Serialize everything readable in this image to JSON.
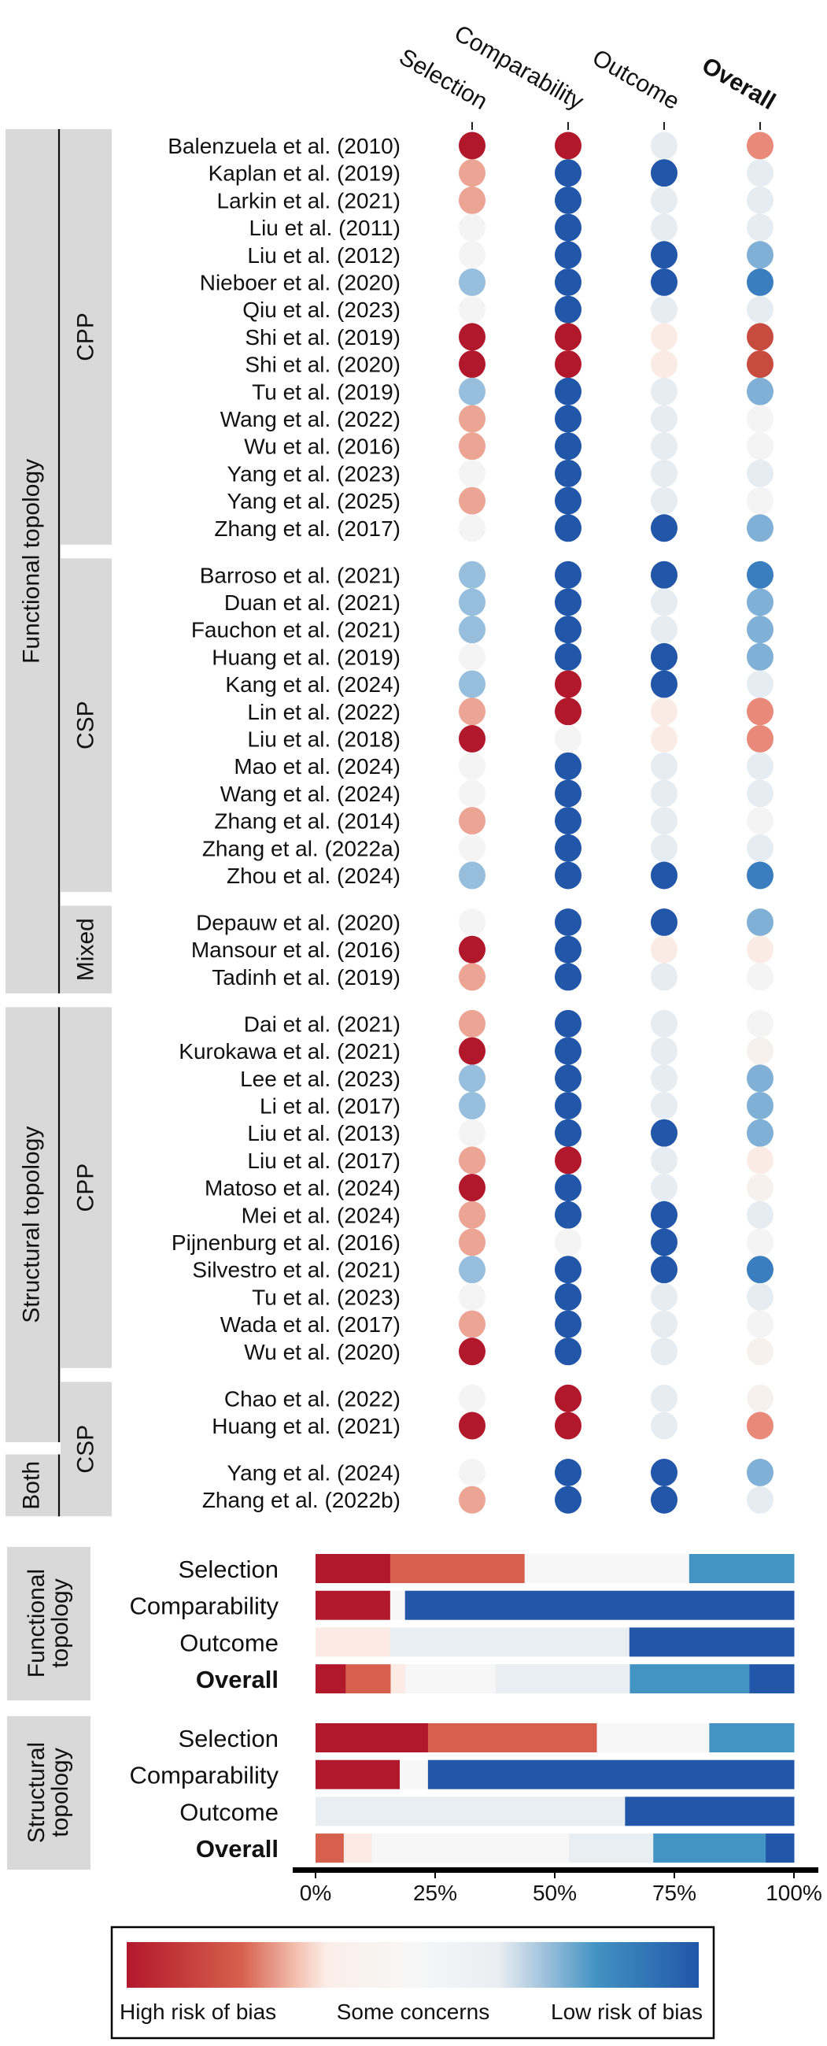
{
  "chart_data": [
    {
      "type": "table",
      "title": "Risk of bias traffic-light plot",
      "domains": [
        "Selection",
        "Comparability",
        "Outcome",
        "Overall"
      ],
      "bold_domain": "Overall",
      "dot_colors": {
        "H": "#b2182b",
        "h2": "#c84b40",
        "M": "#eca494",
        "m2": "#e8897a",
        "P": "#faebe4",
        "F": "#f7f1ee",
        "N": "#f4f4f4",
        "G": "#e6edf2",
        "L": "#98bedd",
        "l2": "#80b0d5",
        "B": "#3a7ebf",
        "D": "#2156a8"
      },
      "segments": [
        {
          "outer": "Functional topology",
          "inner": "CPP",
          "studies": [
            {
              "name": "Balenzuela et al. (2010)",
              "ratings": [
                "H",
                "H",
                "G",
                "m2"
              ]
            },
            {
              "name": "Kaplan et al. (2019)",
              "ratings": [
                "M",
                "D",
                "D",
                "G"
              ]
            },
            {
              "name": "Larkin et al. (2021)",
              "ratings": [
                "M",
                "D",
                "G",
                "G"
              ]
            },
            {
              "name": "Liu et al. (2011)",
              "ratings": [
                "N",
                "D",
                "G",
                "G"
              ]
            },
            {
              "name": "Liu et al. (2012)",
              "ratings": [
                "N",
                "D",
                "D",
                "l2"
              ]
            },
            {
              "name": "Nieboer et al. (2020)",
              "ratings": [
                "L",
                "D",
                "D",
                "B"
              ]
            },
            {
              "name": "Qiu et al. (2023)",
              "ratings": [
                "N",
                "D",
                "G",
                "G"
              ]
            },
            {
              "name": "Shi et al. (2019)",
              "ratings": [
                "H",
                "H",
                "P",
                "h2"
              ]
            },
            {
              "name": "Shi et al. (2020)",
              "ratings": [
                "H",
                "H",
                "P",
                "h2"
              ]
            },
            {
              "name": "Tu et al. (2019)",
              "ratings": [
                "L",
                "D",
                "G",
                "l2"
              ]
            },
            {
              "name": "Wang et al. (2022)",
              "ratings": [
                "M",
                "D",
                "G",
                "N"
              ]
            },
            {
              "name": "Wu et al. (2016)",
              "ratings": [
                "M",
                "D",
                "G",
                "N"
              ]
            },
            {
              "name": "Yang et al. (2023)",
              "ratings": [
                "N",
                "D",
                "G",
                "G"
              ]
            },
            {
              "name": "Yang et al. (2025)",
              "ratings": [
                "M",
                "D",
                "G",
                "N"
              ]
            },
            {
              "name": "Zhang et al. (2017)",
              "ratings": [
                "N",
                "D",
                "D",
                "l2"
              ]
            }
          ]
        },
        {
          "outer": "Functional topology",
          "inner": "CSP",
          "studies": [
            {
              "name": "Barroso et al. (2021)",
              "ratings": [
                "L",
                "D",
                "D",
                "B"
              ]
            },
            {
              "name": "Duan et al. (2021)",
              "ratings": [
                "L",
                "D",
                "G",
                "l2"
              ]
            },
            {
              "name": "Fauchon et al. (2021)",
              "ratings": [
                "L",
                "D",
                "G",
                "l2"
              ]
            },
            {
              "name": "Huang et al. (2019)",
              "ratings": [
                "N",
                "D",
                "D",
                "l2"
              ]
            },
            {
              "name": "Kang et al. (2024)",
              "ratings": [
                "L",
                "H",
                "D",
                "G"
              ]
            },
            {
              "name": "Lin et al. (2022)",
              "ratings": [
                "M",
                "H",
                "P",
                "m2"
              ]
            },
            {
              "name": "Liu et al. (2018)",
              "ratings": [
                "H",
                "N",
                "P",
                "m2"
              ]
            },
            {
              "name": "Mao et al. (2024)",
              "ratings": [
                "N",
                "D",
                "G",
                "G"
              ]
            },
            {
              "name": "Wang et al. (2024)",
              "ratings": [
                "N",
                "D",
                "G",
                "G"
              ]
            },
            {
              "name": "Zhang et al. (2014)",
              "ratings": [
                "M",
                "D",
                "G",
                "N"
              ]
            },
            {
              "name": "Zhang et al. (2022a)",
              "ratings": [
                "N",
                "D",
                "G",
                "G"
              ]
            },
            {
              "name": "Zhou et al. (2024)",
              "ratings": [
                "L",
                "D",
                "D",
                "B"
              ]
            }
          ]
        },
        {
          "outer": "Functional topology",
          "inner": "Mixed",
          "studies": [
            {
              "name": "Depauw et al. (2020)",
              "ratings": [
                "N",
                "D",
                "D",
                "l2"
              ]
            },
            {
              "name": "Mansour et al. (2016)",
              "ratings": [
                "H",
                "D",
                "P",
                "P"
              ]
            },
            {
              "name": "Tadinh et al. (2019)",
              "ratings": [
                "M",
                "D",
                "G",
                "N"
              ]
            }
          ]
        },
        {
          "outer": "Structural topology",
          "inner": "CPP",
          "studies": [
            {
              "name": "Dai et al. (2021)",
              "ratings": [
                "M",
                "D",
                "G",
                "N"
              ]
            },
            {
              "name": "Kurokawa et al. (2021)",
              "ratings": [
                "H",
                "D",
                "G",
                "F"
              ]
            },
            {
              "name": "Lee et al. (2023)",
              "ratings": [
                "L",
                "D",
                "G",
                "l2"
              ]
            },
            {
              "name": "Li et al. (2017)",
              "ratings": [
                "L",
                "D",
                "G",
                "l2"
              ]
            },
            {
              "name": "Liu et al. (2013)",
              "ratings": [
                "N",
                "D",
                "D",
                "l2"
              ]
            },
            {
              "name": "Liu et al. (2017)",
              "ratings": [
                "M",
                "H",
                "G",
                "P"
              ]
            },
            {
              "name": "Matoso et al. (2024)",
              "ratings": [
                "H",
                "D",
                "G",
                "F"
              ]
            },
            {
              "name": "Mei et al. (2024)",
              "ratings": [
                "M",
                "D",
                "D",
                "G"
              ]
            },
            {
              "name": "Pijnenburg et al. (2016)",
              "ratings": [
                "M",
                "N",
                "D",
                "N"
              ]
            },
            {
              "name": "Silvestro et al. (2021)",
              "ratings": [
                "L",
                "D",
                "D",
                "B"
              ]
            },
            {
              "name": "Tu et al. (2023)",
              "ratings": [
                "N",
                "D",
                "G",
                "G"
              ]
            },
            {
              "name": "Wada et al. (2017)",
              "ratings": [
                "M",
                "D",
                "G",
                "N"
              ]
            },
            {
              "name": "Wu et al. (2020)",
              "ratings": [
                "H",
                "D",
                "G",
                "F"
              ]
            }
          ]
        },
        {
          "outer": "Structural topology",
          "inner": "CSP",
          "studies": [
            {
              "name": "Chao et al. (2022)",
              "ratings": [
                "N",
                "H",
                "G",
                "F"
              ]
            },
            {
              "name": "Huang et al. (2021)",
              "ratings": [
                "H",
                "H",
                "G",
                "m2"
              ]
            }
          ]
        },
        {
          "outer": "Both",
          "inner": "CSP",
          "studies": [
            {
              "name": "Yang et al. (2024)",
              "ratings": [
                "N",
                "D",
                "D",
                "l2"
              ]
            },
            {
              "name": "Zhang et al. (2022b)",
              "ratings": [
                "M",
                "D",
                "D",
                "G"
              ]
            }
          ]
        }
      ]
    },
    {
      "type": "bar",
      "stacked": true,
      "orientation": "horizontal",
      "xlim": [
        0,
        100
      ],
      "xticks": [
        "0%",
        "25%",
        "50%",
        "75%",
        "100%"
      ],
      "bar_colors": {
        "H": "#b2182b",
        "M": "#d6604d",
        "P": "#fbebe4",
        "N": "#f7f7f7",
        "G": "#e8eef2",
        "L": "#4393c3",
        "D": "#2156a8"
      },
      "groups": [
        {
          "label": [
            "Functional",
            "topology"
          ],
          "rows": [
            {
              "label": "Selection",
              "segments": [
                [
                  "H",
                  15.6
                ],
                [
                  "M",
                  28.1
                ],
                [
                  "N",
                  34.4
                ],
                [
                  "L",
                  21.9
                ]
              ]
            },
            {
              "label": "Comparability",
              "segments": [
                [
                  "H",
                  15.6
                ],
                [
                  "N",
                  3.1
                ],
                [
                  "D",
                  81.3
                ]
              ]
            },
            {
              "label": "Outcome",
              "segments": [
                [
                  "P",
                  15.6
                ],
                [
                  "G",
                  50.0
                ],
                [
                  "D",
                  34.4
                ]
              ]
            },
            {
              "label": "Overall",
              "segments": [
                [
                  "H",
                  6.3
                ],
                [
                  "M",
                  9.4
                ],
                [
                  "P",
                  3.1
                ],
                [
                  "N",
                  18.8
                ],
                [
                  "G",
                  28.1
                ],
                [
                  "L",
                  25.0
                ],
                [
                  "D",
                  9.3
                ]
              ]
            }
          ]
        },
        {
          "label": [
            "Structural",
            "topology"
          ],
          "rows": [
            {
              "label": "Selection",
              "segments": [
                [
                  "H",
                  23.5
                ],
                [
                  "M",
                  35.3
                ],
                [
                  "N",
                  23.5
                ],
                [
                  "L",
                  17.7
                ]
              ]
            },
            {
              "label": "Comparability",
              "segments": [
                [
                  "H",
                  17.6
                ],
                [
                  "N",
                  5.9
                ],
                [
                  "D",
                  76.5
                ]
              ]
            },
            {
              "label": "Outcome",
              "segments": [
                [
                  "G",
                  64.7
                ],
                [
                  "D",
                  35.3
                ]
              ]
            },
            {
              "label": "Overall",
              "segments": [
                [
                  "M",
                  5.9
                ],
                [
                  "P",
                  5.9
                ],
                [
                  "N",
                  41.2
                ],
                [
                  "G",
                  17.6
                ],
                [
                  "L",
                  23.5
                ],
                [
                  "D",
                  5.9
                ]
              ]
            }
          ]
        }
      ]
    }
  ],
  "legend": {
    "labels": [
      "High risk of bias",
      "Some concerns",
      "Low risk of bias"
    ],
    "gradient": [
      "#b2182b",
      "#d6604d",
      "#f4c3b3",
      "#fbeee8",
      "#f7f7f7",
      "#e9eef2",
      "#a9c7df",
      "#4393c3",
      "#2156a8"
    ]
  }
}
